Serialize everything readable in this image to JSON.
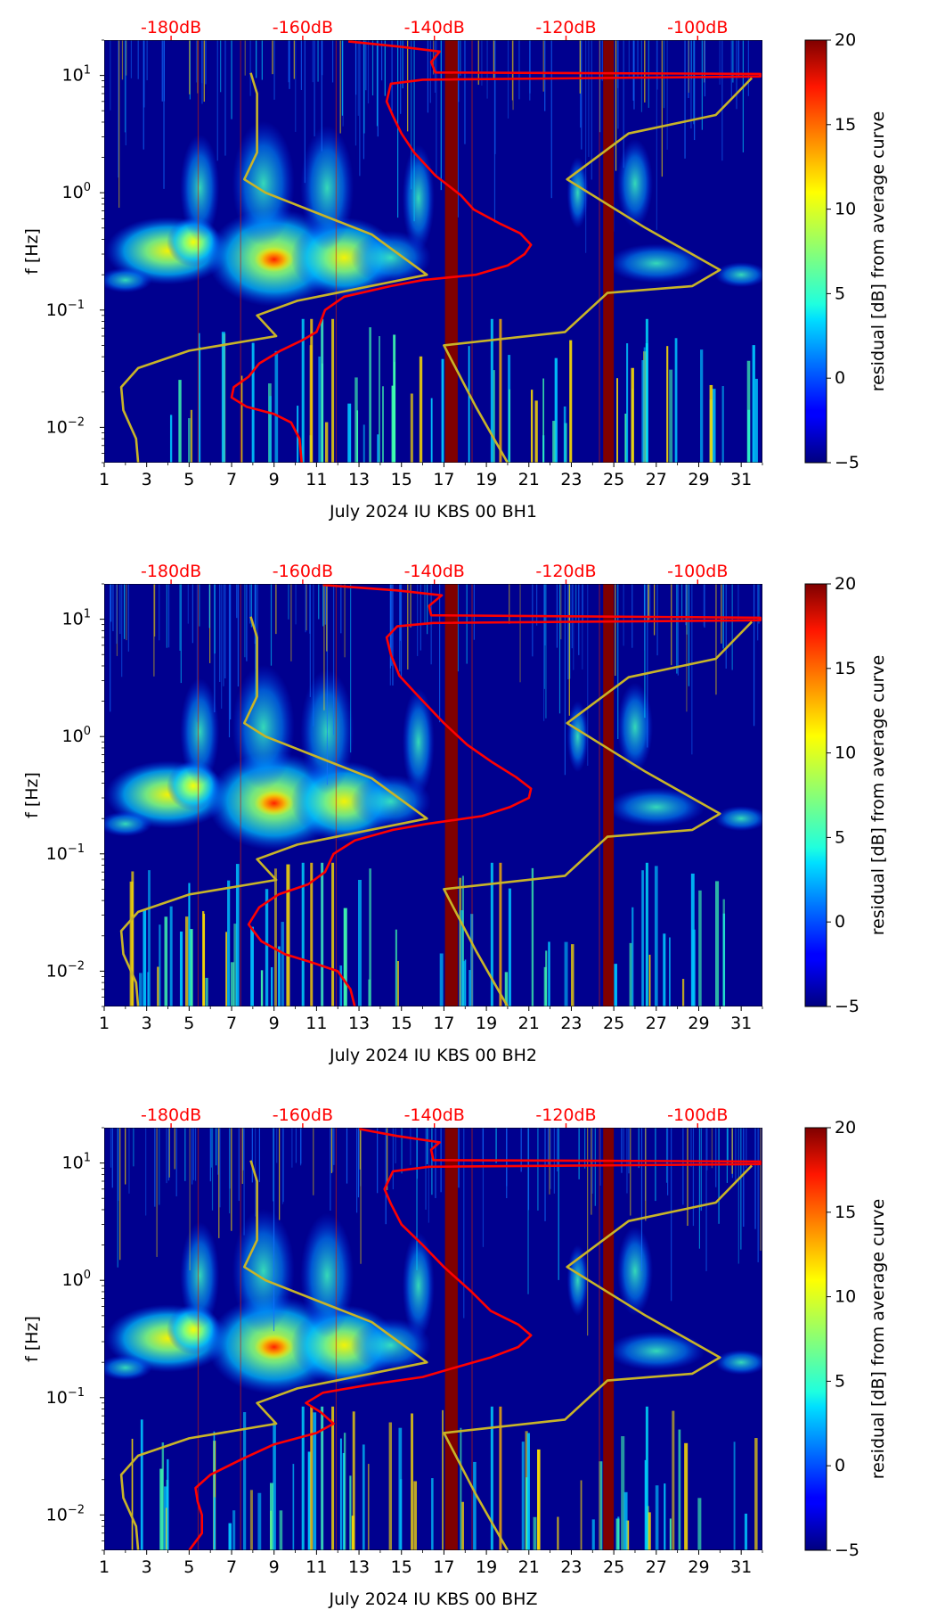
{
  "chart_data": [
    {
      "type": "heatmap",
      "title": "",
      "xlabel": "July 2024 IU KBS 00 BH1",
      "ylabel": "f [Hz]",
      "xlim": [
        1,
        32
      ],
      "ylim": [
        0.005,
        20
      ],
      "yscale": "log",
      "x_ticks": [
        "1",
        "3",
        "5",
        "7",
        "9",
        "11",
        "13",
        "15",
        "17",
        "19",
        "21",
        "23",
        "25",
        "27",
        "29",
        "31"
      ],
      "y_ticks": [
        {
          "value": 0.01,
          "base": "10",
          "exp": "−2"
        },
        {
          "value": 0.1,
          "base": "10",
          "exp": "−1"
        },
        {
          "value": 1,
          "base": "10",
          "exp": "0"
        },
        {
          "value": 10,
          "base": "10",
          "exp": "1"
        }
      ],
      "top_axis": {
        "color": "#ff0000",
        "ticks": [
          {
            "day": 4.15,
            "label": "-180dB"
          },
          {
            "day": 10.35,
            "label": "-160dB"
          },
          {
            "day": 16.55,
            "label": "-140dB"
          },
          {
            "day": 22.75,
            "label": "-120dB"
          },
          {
            "day": 28.95,
            "label": "-100dB"
          }
        ]
      },
      "colorbar": {
        "label": "residual [dB] from average curve",
        "min": -5,
        "max": 20,
        "ticks": [
          "−5",
          "0",
          "5",
          "10",
          "15",
          "20"
        ]
      },
      "gaps": [
        {
          "x0": 17.05,
          "x1": 17.65
        },
        {
          "x0": 24.5,
          "x1": 25.0
        }
      ],
      "series": [
        {
          "kind": "avg_psd",
          "color": "#ff0000",
          "points": [
            [
              10.3,
              0.005
            ],
            [
              10.2,
              0.008
            ],
            [
              9.8,
              0.011
            ],
            [
              9.0,
              0.013
            ],
            [
              7.7,
              0.015
            ],
            [
              7.0,
              0.018
            ],
            [
              7.1,
              0.022
            ],
            [
              7.8,
              0.027
            ],
            [
              8.3,
              0.035
            ],
            [
              9.3,
              0.045
            ],
            [
              10.3,
              0.055
            ],
            [
              11.0,
              0.065
            ],
            [
              11.2,
              0.08
            ],
            [
              11.4,
              0.1
            ],
            [
              12.3,
              0.13
            ],
            [
              14.5,
              0.16
            ],
            [
              16.0,
              0.18
            ],
            [
              18.5,
              0.2
            ],
            [
              20.0,
              0.24
            ],
            [
              20.8,
              0.3
            ],
            [
              21.1,
              0.36
            ],
            [
              20.6,
              0.45
            ],
            [
              19.6,
              0.55
            ],
            [
              18.4,
              0.72
            ],
            [
              17.8,
              0.95
            ],
            [
              16.6,
              1.4
            ],
            [
              15.6,
              2.2
            ],
            [
              15.0,
              3.2
            ],
            [
              14.6,
              4.5
            ],
            [
              14.3,
              6.0
            ],
            [
              14.5,
              8.5
            ],
            [
              16.0,
              9.2
            ],
            [
              31.9,
              9.8
            ],
            [
              31.9,
              10.3
            ],
            [
              16.6,
              10.6
            ],
            [
              16.4,
              13.0
            ],
            [
              16.8,
              16.0
            ],
            [
              15.0,
              17.5
            ],
            [
              12.5,
              19.5
            ]
          ]
        },
        {
          "kind": "low_noise_model",
          "color": "#c8b428",
          "points": [
            [
              2.6,
              0.005
            ],
            [
              2.5,
              0.008
            ],
            [
              1.9,
              0.014
            ],
            [
              1.8,
              0.022
            ],
            [
              2.6,
              0.032
            ],
            [
              5.0,
              0.045
            ],
            [
              9.1,
              0.06
            ],
            [
              8.2,
              0.09
            ],
            [
              10.1,
              0.12
            ],
            [
              16.2,
              0.2
            ],
            [
              13.6,
              0.44
            ],
            [
              8.6,
              1.0
            ],
            [
              7.6,
              1.3
            ],
            [
              8.2,
              2.2
            ],
            [
              8.2,
              3.7
            ],
            [
              8.2,
              7.0
            ],
            [
              7.9,
              10.5
            ]
          ]
        },
        {
          "kind": "high_noise_model",
          "color": "#c8b428",
          "points": [
            [
              20.0,
              0.005
            ],
            [
              18.5,
              0.015
            ],
            [
              17.0,
              0.05
            ],
            [
              22.7,
              0.065
            ],
            [
              24.7,
              0.14
            ],
            [
              28.7,
              0.16
            ],
            [
              30.0,
              0.22
            ],
            [
              26.5,
              0.5
            ],
            [
              22.8,
              1.3
            ],
            [
              25.7,
              3.2
            ],
            [
              29.8,
              4.6
            ],
            [
              31.5,
              9.5
            ]
          ]
        }
      ]
    },
    {
      "type": "heatmap",
      "title": "",
      "xlabel": "July 2024 IU KBS 00 BH2",
      "ylabel": "f [Hz]",
      "xlim": [
        1,
        32
      ],
      "ylim": [
        0.005,
        20
      ],
      "yscale": "log",
      "x_ticks": [
        "1",
        "3",
        "5",
        "7",
        "9",
        "11",
        "13",
        "15",
        "17",
        "19",
        "21",
        "23",
        "25",
        "27",
        "29",
        "31"
      ],
      "y_ticks": [
        {
          "value": 0.01,
          "base": "10",
          "exp": "−2"
        },
        {
          "value": 0.1,
          "base": "10",
          "exp": "−1"
        },
        {
          "value": 1,
          "base": "10",
          "exp": "0"
        },
        {
          "value": 10,
          "base": "10",
          "exp": "1"
        }
      ],
      "top_axis": {
        "color": "#ff0000",
        "ticks": [
          {
            "day": 4.15,
            "label": "-180dB"
          },
          {
            "day": 10.35,
            "label": "-160dB"
          },
          {
            "day": 16.55,
            "label": "-140dB"
          },
          {
            "day": 22.75,
            "label": "-120dB"
          },
          {
            "day": 28.95,
            "label": "-100dB"
          }
        ]
      },
      "colorbar": {
        "label": "residual [dB] from average curve",
        "min": -5,
        "max": 20,
        "ticks": [
          "−5",
          "0",
          "5",
          "10",
          "15",
          "20"
        ]
      },
      "gaps": [
        {
          "x0": 17.05,
          "x1": 17.65
        },
        {
          "x0": 24.5,
          "x1": 25.0
        }
      ],
      "series": [
        {
          "kind": "avg_psd",
          "color": "#ff0000",
          "points": [
            [
              12.8,
              0.005
            ],
            [
              12.6,
              0.007
            ],
            [
              12.0,
              0.01
            ],
            [
              10.7,
              0.012
            ],
            [
              9.5,
              0.014
            ],
            [
              8.4,
              0.018
            ],
            [
              7.8,
              0.025
            ],
            [
              8.3,
              0.035
            ],
            [
              9.2,
              0.045
            ],
            [
              10.6,
              0.055
            ],
            [
              11.4,
              0.07
            ],
            [
              11.8,
              0.1
            ],
            [
              12.8,
              0.13
            ],
            [
              14.6,
              0.16
            ],
            [
              16.2,
              0.18
            ],
            [
              18.8,
              0.21
            ],
            [
              20.1,
              0.25
            ],
            [
              21.0,
              0.3
            ],
            [
              21.1,
              0.36
            ],
            [
              20.4,
              0.45
            ],
            [
              19.3,
              0.6
            ],
            [
              18.1,
              0.85
            ],
            [
              17.0,
              1.3
            ],
            [
              15.8,
              2.2
            ],
            [
              14.9,
              3.3
            ],
            [
              14.5,
              5.0
            ],
            [
              14.3,
              7.0
            ],
            [
              14.8,
              8.7
            ],
            [
              16.5,
              9.3
            ],
            [
              31.9,
              9.8
            ],
            [
              31.9,
              10.3
            ],
            [
              16.4,
              10.8
            ],
            [
              16.3,
              13.0
            ],
            [
              16.9,
              16.0
            ],
            [
              14.8,
              17.6
            ],
            [
              11.3,
              19.6
            ]
          ]
        },
        {
          "kind": "low_noise_model",
          "color": "#c8b428",
          "points": [
            [
              2.6,
              0.005
            ],
            [
              2.5,
              0.008
            ],
            [
              1.9,
              0.014
            ],
            [
              1.8,
              0.022
            ],
            [
              2.6,
              0.032
            ],
            [
              5.0,
              0.045
            ],
            [
              9.1,
              0.06
            ],
            [
              8.2,
              0.09
            ],
            [
              10.1,
              0.12
            ],
            [
              16.2,
              0.2
            ],
            [
              13.6,
              0.44
            ],
            [
              8.6,
              1.0
            ],
            [
              7.6,
              1.3
            ],
            [
              8.2,
              2.2
            ],
            [
              8.2,
              3.7
            ],
            [
              8.2,
              7.0
            ],
            [
              7.9,
              10.5
            ]
          ]
        },
        {
          "kind": "high_noise_model",
          "color": "#c8b428",
          "points": [
            [
              20.0,
              0.005
            ],
            [
              18.5,
              0.015
            ],
            [
              17.0,
              0.05
            ],
            [
              22.7,
              0.065
            ],
            [
              24.7,
              0.14
            ],
            [
              28.7,
              0.16
            ],
            [
              30.0,
              0.22
            ],
            [
              26.5,
              0.5
            ],
            [
              22.8,
              1.3
            ],
            [
              25.7,
              3.2
            ],
            [
              29.8,
              4.6
            ],
            [
              31.5,
              9.5
            ]
          ]
        }
      ]
    },
    {
      "type": "heatmap",
      "title": "",
      "xlabel": "July 2024 IU KBS 00 BHZ",
      "ylabel": "f [Hz]",
      "xlim": [
        1,
        32
      ],
      "ylim": [
        0.005,
        20
      ],
      "yscale": "log",
      "x_ticks": [
        "1",
        "3",
        "5",
        "7",
        "9",
        "11",
        "13",
        "15",
        "17",
        "19",
        "21",
        "23",
        "25",
        "27",
        "29",
        "31"
      ],
      "y_ticks": [
        {
          "value": 0.01,
          "base": "10",
          "exp": "−2"
        },
        {
          "value": 0.1,
          "base": "10",
          "exp": "−1"
        },
        {
          "value": 1,
          "base": "10",
          "exp": "0"
        },
        {
          "value": 10,
          "base": "10",
          "exp": "1"
        }
      ],
      "top_axis": {
        "color": "#ff0000",
        "ticks": [
          {
            "day": 4.15,
            "label": "-180dB"
          },
          {
            "day": 10.35,
            "label": "-160dB"
          },
          {
            "day": 16.55,
            "label": "-140dB"
          },
          {
            "day": 22.75,
            "label": "-120dB"
          },
          {
            "day": 28.95,
            "label": "-100dB"
          }
        ]
      },
      "colorbar": {
        "label": "residual [dB] from average curve",
        "min": -5,
        "max": 20,
        "ticks": [
          "−5",
          "0",
          "5",
          "10",
          "15",
          "20"
        ]
      },
      "gaps": [
        {
          "x0": 17.05,
          "x1": 17.65
        },
        {
          "x0": 24.5,
          "x1": 25.0
        }
      ],
      "series": [
        {
          "kind": "avg_psd",
          "color": "#ff0000",
          "points": [
            [
              5.0,
              0.005
            ],
            [
              5.6,
              0.007
            ],
            [
              5.6,
              0.01
            ],
            [
              5.4,
              0.013
            ],
            [
              5.3,
              0.017
            ],
            [
              6.0,
              0.022
            ],
            [
              7.5,
              0.03
            ],
            [
              9.0,
              0.04
            ],
            [
              11.0,
              0.05
            ],
            [
              11.8,
              0.06
            ],
            [
              11.2,
              0.075
            ],
            [
              10.5,
              0.09
            ],
            [
              11.3,
              0.11
            ],
            [
              13.6,
              0.13
            ],
            [
              16.0,
              0.15
            ],
            [
              17.5,
              0.18
            ],
            [
              19.2,
              0.22
            ],
            [
              20.5,
              0.27
            ],
            [
              21.1,
              0.34
            ],
            [
              20.5,
              0.42
            ],
            [
              19.2,
              0.55
            ],
            [
              18.3,
              0.8
            ],
            [
              17.0,
              1.3
            ],
            [
              16.0,
              2.0
            ],
            [
              15.0,
              3.0
            ],
            [
              14.5,
              4.5
            ],
            [
              14.2,
              6.0
            ],
            [
              14.6,
              8.5
            ],
            [
              16.3,
              9.3
            ],
            [
              31.9,
              9.8
            ],
            [
              31.9,
              10.3
            ],
            [
              16.5,
              10.6
            ],
            [
              16.4,
              13.0
            ],
            [
              16.8,
              15.0
            ],
            [
              14.8,
              17.0
            ],
            [
              13.0,
              19.5
            ]
          ]
        },
        {
          "kind": "low_noise_model",
          "color": "#c8b428",
          "points": [
            [
              2.6,
              0.005
            ],
            [
              2.5,
              0.008
            ],
            [
              1.9,
              0.014
            ],
            [
              1.8,
              0.022
            ],
            [
              2.6,
              0.032
            ],
            [
              5.0,
              0.045
            ],
            [
              9.1,
              0.06
            ],
            [
              8.2,
              0.09
            ],
            [
              10.1,
              0.12
            ],
            [
              16.2,
              0.2
            ],
            [
              13.6,
              0.44
            ],
            [
              8.6,
              1.0
            ],
            [
              7.6,
              1.3
            ],
            [
              8.2,
              2.2
            ],
            [
              8.2,
              3.7
            ],
            [
              8.2,
              7.0
            ],
            [
              7.9,
              10.5
            ]
          ]
        },
        {
          "kind": "high_noise_model",
          "color": "#c8b428",
          "points": [
            [
              20.0,
              0.005
            ],
            [
              18.5,
              0.015
            ],
            [
              17.0,
              0.05
            ],
            [
              22.7,
              0.065
            ],
            [
              24.7,
              0.14
            ],
            [
              28.7,
              0.16
            ],
            [
              30.0,
              0.22
            ],
            [
              26.5,
              0.5
            ],
            [
              22.8,
              1.3
            ],
            [
              25.7,
              3.2
            ],
            [
              29.8,
              4.6
            ],
            [
              31.5,
              9.5
            ]
          ]
        }
      ]
    }
  ]
}
